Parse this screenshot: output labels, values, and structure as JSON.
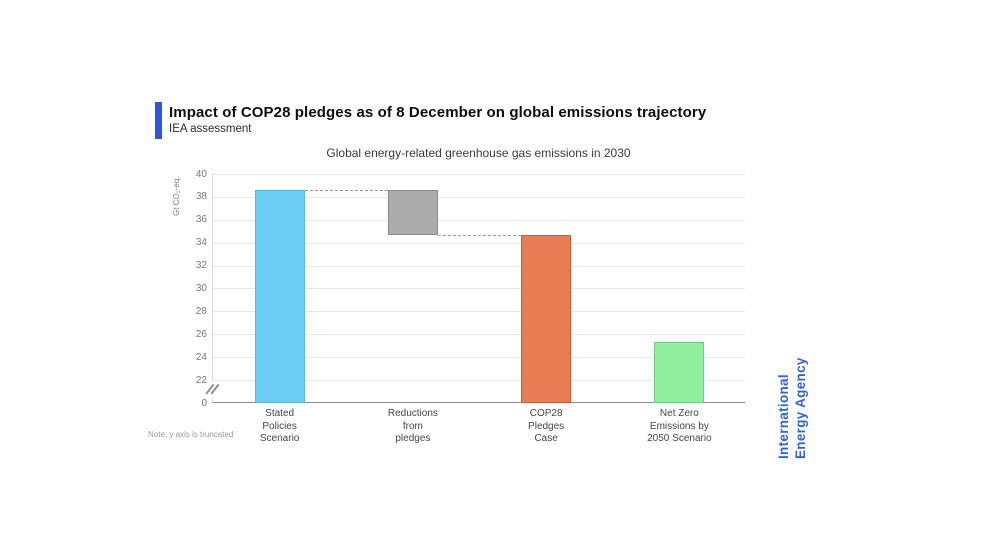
{
  "header": {
    "title": "Impact of COP28 pledges as of 8 December on global emissions trajectory",
    "subtitle": "IEA assessment",
    "accent_color": "#2b55e2"
  },
  "note": "Note: y axis is truncated",
  "branding": {
    "line1": "International",
    "line2": "Energy Agency",
    "color": "#3263d9"
  },
  "chart_data": {
    "type": "bar",
    "title": "Global energy-related greenhouse gas emissions in 2030",
    "ylabel": "Gt CO₂-eq.",
    "ylim": [
      0,
      40
    ],
    "y_axis_truncated": true,
    "truncation_range": [
      0,
      22
    ],
    "y_ticks": [
      0,
      22,
      24,
      26,
      28,
      30,
      32,
      34,
      36,
      38,
      40
    ],
    "grid": true,
    "legend": "none",
    "categories": [
      "Stated Policies Scenario",
      "Reductions from pledges",
      "COP28 Pledges Case",
      "Net Zero Emissions by 2050 Scenario"
    ],
    "bars": [
      {
        "name": "stated-policies-scenario",
        "label_lines": [
          "Stated",
          "Policies",
          "Scenario"
        ],
        "base": 0,
        "top": 38.6,
        "color": "#6ccdf4",
        "border": "#5fb6da"
      },
      {
        "name": "reductions-from-pledges",
        "label_lines": [
          "Reductions",
          "from",
          "pledges"
        ],
        "base": 34.7,
        "top": 38.6,
        "color": "#acacac",
        "border": "#8b8b8b"
      },
      {
        "name": "cop28-pledges-case",
        "label_lines": [
          "COP28",
          "Pledges",
          "Case"
        ],
        "base": 0,
        "top": 34.7,
        "color": "#e87c53",
        "border": "#c65f37"
      },
      {
        "name": "net-zero-emissions-2050",
        "label_lines": [
          "Net Zero",
          "Emissions by",
          "2050 Scenario"
        ],
        "base": 0,
        "top": 25.3,
        "color": "#90ee9e",
        "border": "#74ca84"
      }
    ],
    "connectors": [
      {
        "level": 38.6,
        "from_bar": 0,
        "to_bar": 1
      },
      {
        "level": 34.7,
        "from_bar": 1,
        "to_bar": 2
      }
    ],
    "colors": {
      "gridline": "#e8e8e8",
      "axis": "#8c8c8c",
      "dashed_line": "#9c9c9c",
      "tick_text": "#7a7a7a",
      "category_text": "#454545"
    }
  }
}
